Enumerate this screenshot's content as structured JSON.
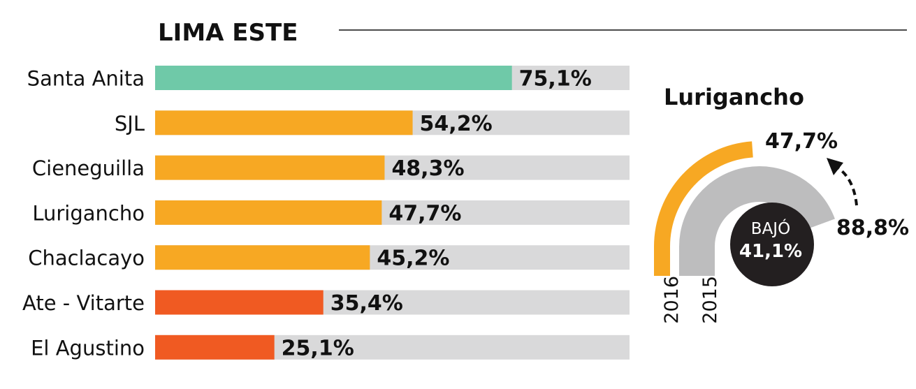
{
  "chart_data": [
    {
      "type": "bar",
      "orientation": "horizontal",
      "title": "LIMA ESTE",
      "xlim": [
        0,
        100
      ],
      "grid": false,
      "categories": [
        "Santa Anita",
        "SJL",
        "Cieneguilla",
        "Lurigancho",
        "Chaclacayo",
        "Ate - Vitarte",
        "El Agustino"
      ],
      "values": [
        75.1,
        54.2,
        48.3,
        47.7,
        45.2,
        35.4,
        25.1
      ],
      "value_labels": [
        "75,1%",
        "54,2%",
        "48,3%",
        "47,7%",
        "45,2%",
        "35,4%",
        "25,1%"
      ],
      "bar_colors": [
        "#6fc9a8",
        "#f7a823",
        "#f7a823",
        "#f7a823",
        "#f7a823",
        "#f05a22",
        "#f05a22"
      ],
      "track_color": "#d9d9da"
    },
    {
      "type": "gauge",
      "title": "Lurigancho",
      "max": 100,
      "series": [
        {
          "year": "2016",
          "value": 47.7,
          "label": "47,7%",
          "color": "#f7a823"
        },
        {
          "year": "2015",
          "value": 88.8,
          "label": "88,8%",
          "color": "#bdbdbe"
        }
      ],
      "badge": {
        "label": "BAJÓ",
        "value": "41,1%",
        "color": "#231f20"
      }
    }
  ]
}
